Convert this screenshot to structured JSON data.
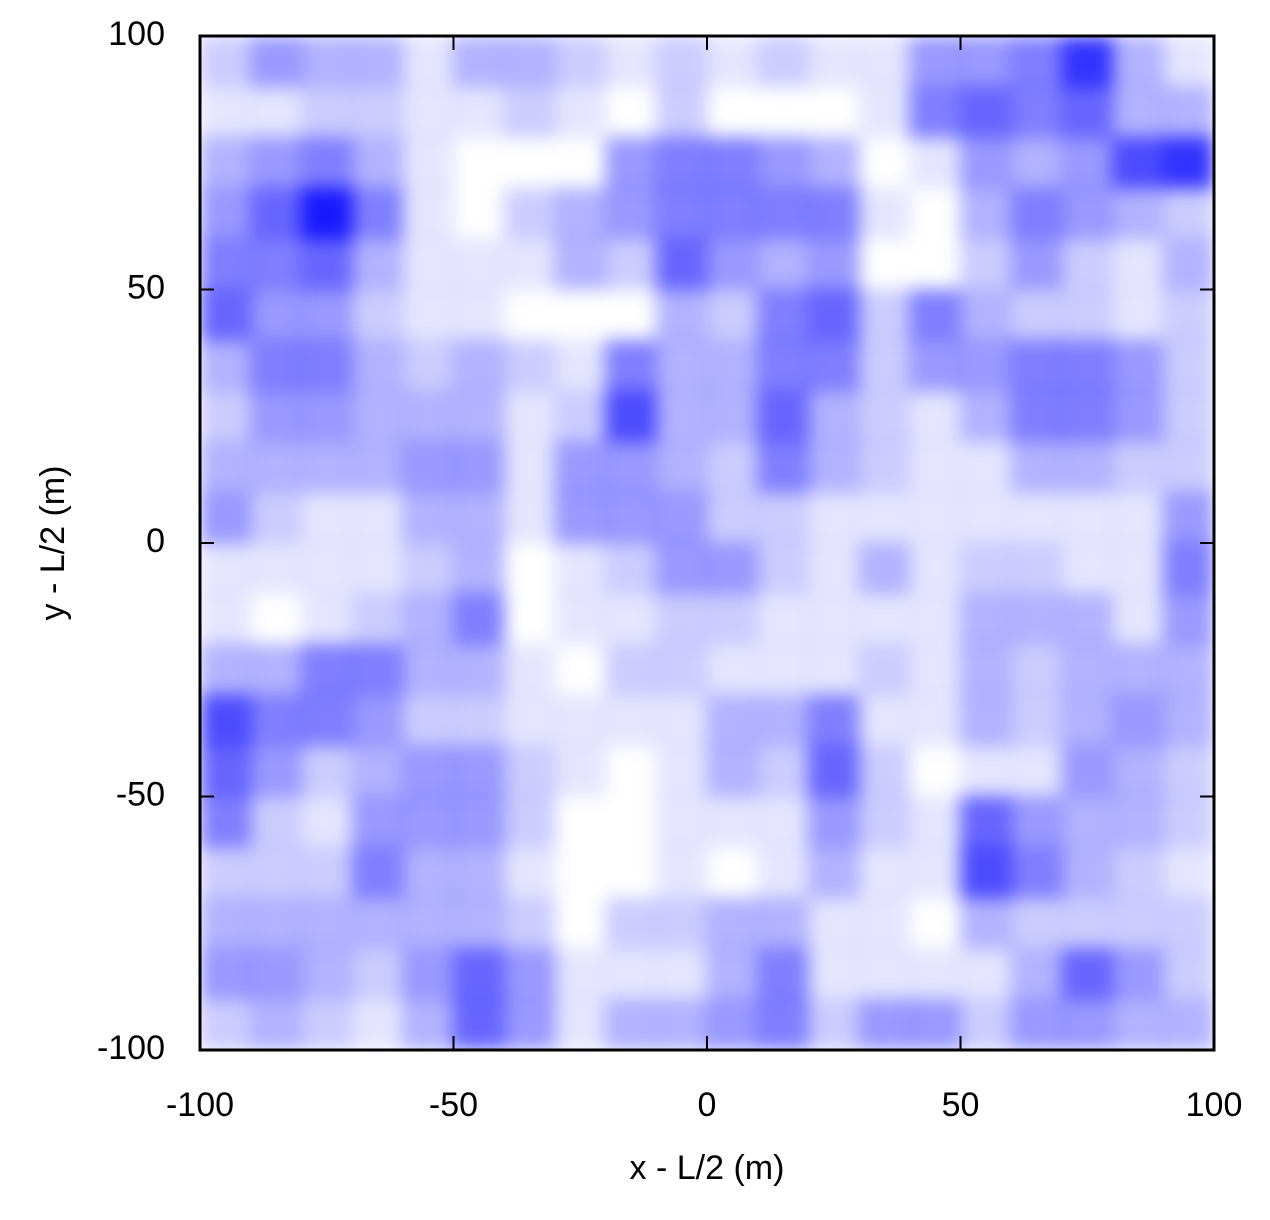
{
  "chart_data": {
    "type": "heatmap",
    "x_label": "x - L/2 (m)",
    "y_label": "y - L/2 (m)",
    "xlim": [
      -100,
      100
    ],
    "ylim": [
      -100,
      100
    ],
    "xticks": [
      -100,
      -50,
      0,
      50,
      100
    ],
    "yticks": [
      -100,
      -50,
      0,
      50,
      100
    ],
    "color": "#0000ff",
    "zlim": [
      0,
      1
    ],
    "x": [
      -95,
      -85,
      -75,
      -65,
      -55,
      -45,
      -35,
      -25,
      -15,
      -5,
      5,
      15,
      25,
      35,
      45,
      55,
      65,
      75,
      85,
      95
    ],
    "y": [
      95,
      85,
      75,
      65,
      55,
      45,
      35,
      25,
      15,
      5,
      -5,
      -15,
      -25,
      -35,
      -45,
      -55,
      -65,
      -75,
      -85,
      -95
    ],
    "z": [
      [
        0.2,
        0.4,
        0.3,
        0.3,
        0.1,
        0.3,
        0.3,
        0.2,
        0.1,
        0.2,
        0.1,
        0.2,
        0.1,
        0.1,
        0.4,
        0.4,
        0.5,
        0.8,
        0.3,
        0.1
      ],
      [
        0.1,
        0.1,
        0.2,
        0.2,
        0.1,
        0.1,
        0.2,
        0.1,
        0,
        0.2,
        0,
        0,
        0,
        0.1,
        0.5,
        0.6,
        0.5,
        0.6,
        0.3,
        0.3
      ],
      [
        0.3,
        0.4,
        0.5,
        0.3,
        0.1,
        0,
        0,
        0,
        0.4,
        0.5,
        0.5,
        0.4,
        0.3,
        0,
        0.1,
        0.4,
        0.3,
        0.4,
        0.7,
        0.8
      ],
      [
        0.4,
        0.6,
        0.9,
        0.5,
        0.1,
        0,
        0.2,
        0.3,
        0.4,
        0.5,
        0.5,
        0.5,
        0.5,
        0.1,
        0,
        0.3,
        0.5,
        0.4,
        0.3,
        0.2
      ],
      [
        0.5,
        0.5,
        0.6,
        0.3,
        0.1,
        0.1,
        0.1,
        0.3,
        0.2,
        0.6,
        0.4,
        0.3,
        0.4,
        0,
        0,
        0.2,
        0.4,
        0.2,
        0.1,
        0.3
      ],
      [
        0.6,
        0.4,
        0.4,
        0.2,
        0.1,
        0.1,
        0,
        0,
        0,
        0.3,
        0.2,
        0.5,
        0.6,
        0.2,
        0.5,
        0.3,
        0.2,
        0.2,
        0.1,
        0.2
      ],
      [
        0.3,
        0.5,
        0.5,
        0.3,
        0.2,
        0.3,
        0.2,
        0.1,
        0.5,
        0.3,
        0.3,
        0.5,
        0.5,
        0.2,
        0.4,
        0.4,
        0.5,
        0.5,
        0.4,
        0.2
      ],
      [
        0.2,
        0.4,
        0.4,
        0.3,
        0.3,
        0.3,
        0.1,
        0.2,
        0.7,
        0.3,
        0.3,
        0.6,
        0.3,
        0.2,
        0.1,
        0.3,
        0.5,
        0.5,
        0.4,
        0.2
      ],
      [
        0.3,
        0.3,
        0.3,
        0.3,
        0.4,
        0.4,
        0.1,
        0.4,
        0.4,
        0.3,
        0.2,
        0.5,
        0.3,
        0.2,
        0.1,
        0.1,
        0.3,
        0.3,
        0.2,
        0.2
      ],
      [
        0.4,
        0.2,
        0.1,
        0.1,
        0.3,
        0.3,
        0.1,
        0.4,
        0.4,
        0.4,
        0.2,
        0.2,
        0.1,
        0.1,
        0.1,
        0.1,
        0.1,
        0.1,
        0.1,
        0.4
      ],
      [
        0.1,
        0.1,
        0.1,
        0.1,
        0.2,
        0.3,
        0,
        0.1,
        0.2,
        0.4,
        0.4,
        0.2,
        0.1,
        0.3,
        0.1,
        0.2,
        0.2,
        0.1,
        0.1,
        0.5
      ],
      [
        0.1,
        0,
        0.1,
        0.2,
        0.3,
        0.5,
        0,
        0.1,
        0.1,
        0.2,
        0.2,
        0.1,
        0.1,
        0.1,
        0.1,
        0.3,
        0.3,
        0.3,
        0.1,
        0.4
      ],
      [
        0.3,
        0.3,
        0.5,
        0.5,
        0.3,
        0.3,
        0.1,
        0,
        0.2,
        0.2,
        0.1,
        0.1,
        0.1,
        0.2,
        0.1,
        0.3,
        0.2,
        0.3,
        0.3,
        0.3
      ],
      [
        0.7,
        0.5,
        0.5,
        0.4,
        0.2,
        0.2,
        0.1,
        0.1,
        0.1,
        0.1,
        0.3,
        0.3,
        0.5,
        0.1,
        0.1,
        0.3,
        0.2,
        0.3,
        0.4,
        0.3
      ],
      [
        0.6,
        0.4,
        0.2,
        0.3,
        0.4,
        0.4,
        0.2,
        0.1,
        0,
        0.1,
        0.3,
        0.2,
        0.6,
        0.2,
        0,
        0.1,
        0.1,
        0.4,
        0.3,
        0.2
      ],
      [
        0.5,
        0.2,
        0.1,
        0.4,
        0.4,
        0.4,
        0.2,
        0,
        0,
        0.1,
        0.1,
        0.1,
        0.4,
        0.2,
        0.1,
        0.6,
        0.4,
        0.3,
        0.3,
        0.2
      ],
      [
        0.2,
        0.2,
        0.2,
        0.5,
        0.3,
        0.3,
        0.1,
        0,
        0,
        0.1,
        0,
        0.1,
        0.3,
        0.1,
        0.1,
        0.7,
        0.5,
        0.3,
        0.2,
        0.1
      ],
      [
        0.3,
        0.3,
        0.3,
        0.3,
        0.3,
        0.3,
        0.2,
        0,
        0.2,
        0.2,
        0.3,
        0.3,
        0.1,
        0.1,
        0,
        0.3,
        0.2,
        0.2,
        0.2,
        0.2
      ],
      [
        0.4,
        0.4,
        0.3,
        0.2,
        0.4,
        0.6,
        0.4,
        0.1,
        0.1,
        0.1,
        0.3,
        0.5,
        0.1,
        0.1,
        0.1,
        0.1,
        0.3,
        0.6,
        0.4,
        0.2
      ],
      [
        0.2,
        0.3,
        0.2,
        0.1,
        0.3,
        0.6,
        0.4,
        0.1,
        0.3,
        0.3,
        0.4,
        0.5,
        0.2,
        0.4,
        0.4,
        0.2,
        0.4,
        0.4,
        0.3,
        0.3
      ]
    ]
  }
}
